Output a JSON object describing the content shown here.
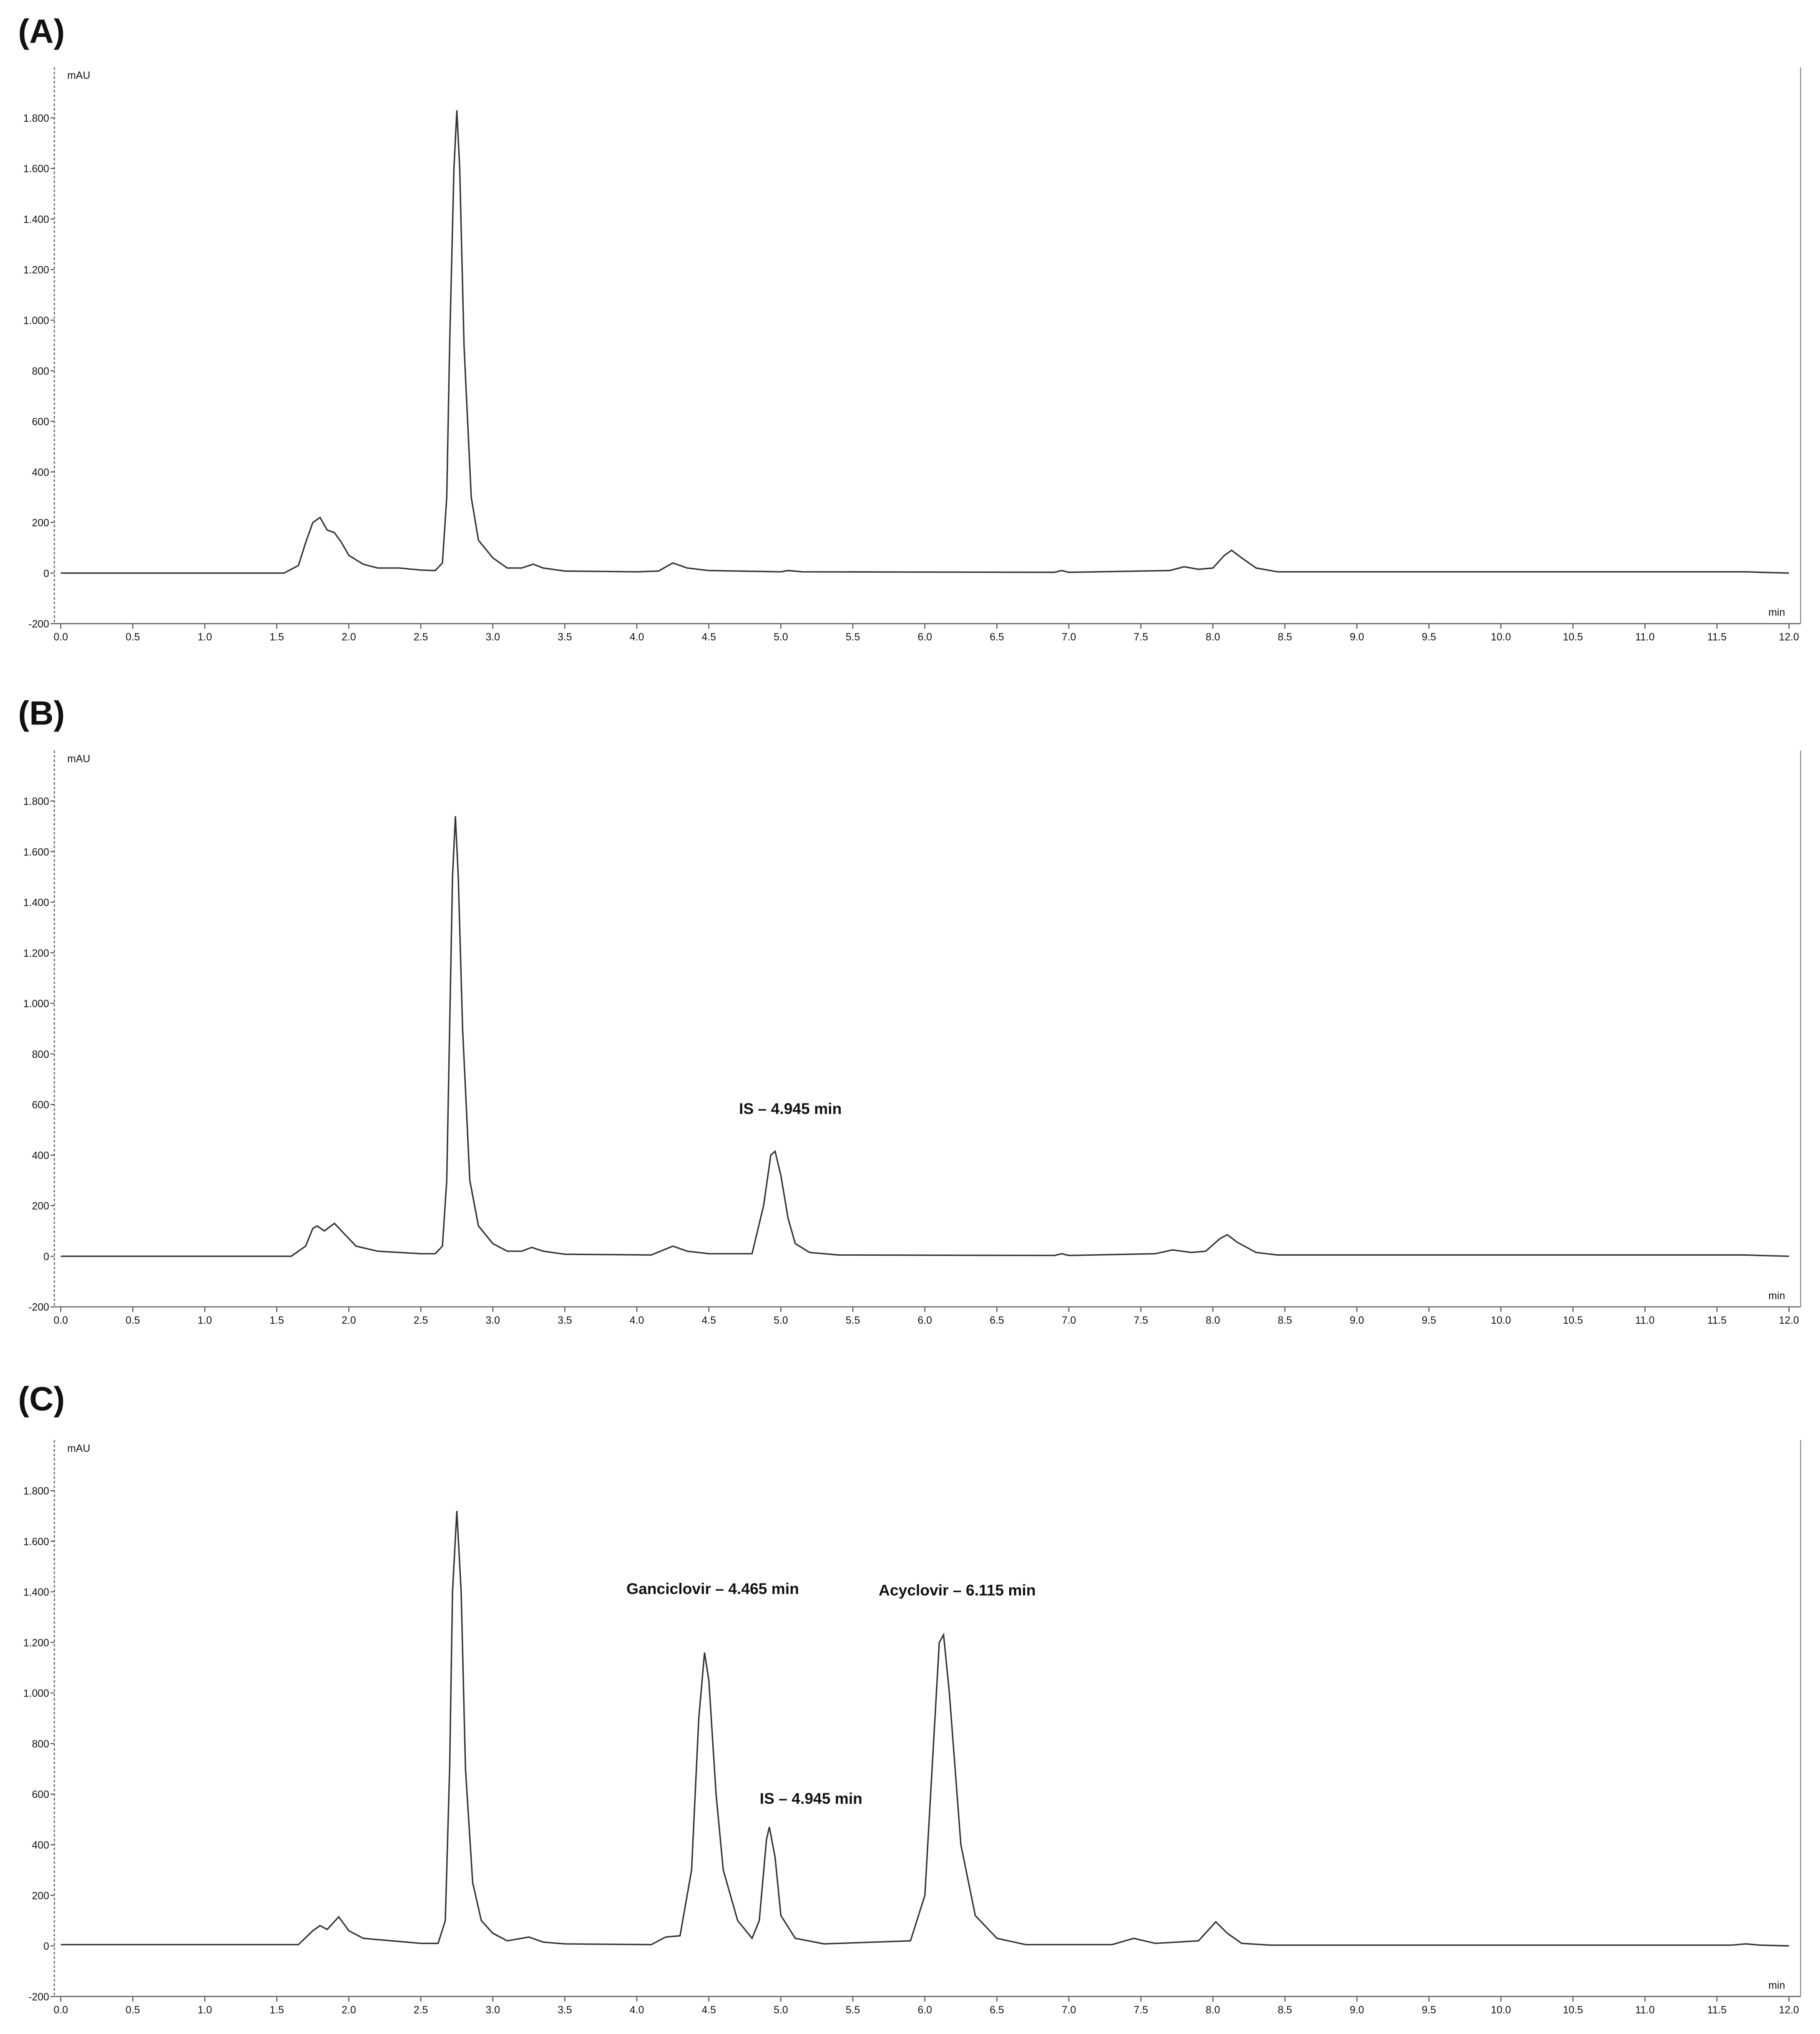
{
  "chart_data": [
    {
      "type": "line",
      "title": "(A)",
      "y_label": "mAU",
      "x_label": "min",
      "annotations": [],
      "xlim": [
        0,
        12
      ],
      "ylim": [
        -200,
        2000
      ],
      "xticks": [
        {
          "value": 0,
          "label": "0.0"
        },
        {
          "value": 0.5,
          "label": "0.5"
        },
        {
          "value": 1,
          "label": "1.0"
        },
        {
          "value": 1.5,
          "label": "1.5"
        },
        {
          "value": 2,
          "label": "2.0"
        },
        {
          "value": 2.5,
          "label": "2.5"
        },
        {
          "value": 3,
          "label": "3.0"
        },
        {
          "value": 3.5,
          "label": "3.5"
        },
        {
          "value": 4,
          "label": "4.0"
        },
        {
          "value": 4.5,
          "label": "4.5"
        },
        {
          "value": 5,
          "label": "5.0"
        },
        {
          "value": 5.5,
          "label": "5.5"
        },
        {
          "value": 6,
          "label": "6.0"
        },
        {
          "value": 6.5,
          "label": "6.5"
        },
        {
          "value": 7,
          "label": "7.0"
        },
        {
          "value": 7.5,
          "label": "7.5"
        },
        {
          "value": 8,
          "label": "8.0"
        },
        {
          "value": 8.5,
          "label": "8.5"
        },
        {
          "value": 9,
          "label": "9.0"
        },
        {
          "value": 9.5,
          "label": "9.5"
        },
        {
          "value": 10,
          "label": "10.0"
        },
        {
          "value": 10.5,
          "label": "10.5"
        },
        {
          "value": 11,
          "label": "11.0"
        },
        {
          "value": 11.5,
          "label": "11.5"
        },
        {
          "value": 12,
          "label": "12.0"
        }
      ],
      "yticks": [
        -200,
        0,
        200,
        400,
        600,
        800,
        {
          "value": 1000,
          "label": "1.000"
        },
        {
          "value": 1200,
          "label": "1.200"
        },
        {
          "value": 1400,
          "label": "1.400"
        },
        {
          "value": 1600,
          "label": "1.600"
        },
        {
          "value": 1800,
          "label": "1.800"
        }
      ],
      "color": "#333333",
      "x": [
        0,
        1.55,
        1.65,
        1.7,
        1.75,
        1.8,
        1.85,
        1.9,
        1.95,
        2.0,
        2.1,
        2.2,
        2.35,
        2.5,
        2.6,
        2.65,
        2.68,
        2.7,
        2.73,
        2.75,
        2.77,
        2.8,
        2.85,
        2.9,
        3.0,
        3.1,
        3.2,
        3.28,
        3.35,
        3.5,
        4.0,
        4.15,
        4.25,
        4.35,
        4.5,
        5.0,
        5.05,
        5.15,
        6.9,
        6.95,
        7.0,
        7.7,
        7.8,
        7.9,
        8.0,
        8.08,
        8.13,
        8.2,
        8.3,
        8.45,
        11.7,
        11.8,
        12.0
      ],
      "values": [
        0,
        0,
        30,
        120,
        200,
        220,
        170,
        160,
        120,
        70,
        35,
        20,
        20,
        12,
        10,
        40,
        300,
        900,
        1600,
        1830,
        1600,
        900,
        300,
        130,
        60,
        20,
        20,
        35,
        20,
        8,
        5,
        8,
        40,
        20,
        10,
        5,
        10,
        5,
        3,
        10,
        3,
        10,
        25,
        15,
        20,
        70,
        90,
        60,
        20,
        5,
        5,
        3,
        0
      ]
    },
    {
      "type": "line",
      "title": "(B)",
      "y_label": "mAU",
      "x_label": "min",
      "annotations": [
        "IS – 4.945 min"
      ],
      "xlim": [
        0,
        12
      ],
      "ylim": [
        -200,
        2000
      ],
      "xticks": [
        {
          "value": 0,
          "label": "0.0"
        },
        {
          "value": 0.5,
          "label": "0.5"
        },
        {
          "value": 1,
          "label": "1.0"
        },
        {
          "value": 1.5,
          "label": "1.5"
        },
        {
          "value": 2,
          "label": "2.0"
        },
        {
          "value": 2.5,
          "label": "2.5"
        },
        {
          "value": 3,
          "label": "3.0"
        },
        {
          "value": 3.5,
          "label": "3.5"
        },
        {
          "value": 4,
          "label": "4.0"
        },
        {
          "value": 4.5,
          "label": "4.5"
        },
        {
          "value": 5,
          "label": "5.0"
        },
        {
          "value": 5.5,
          "label": "5.5"
        },
        {
          "value": 6,
          "label": "6.0"
        },
        {
          "value": 6.5,
          "label": "6.5"
        },
        {
          "value": 7,
          "label": "7.0"
        },
        {
          "value": 7.5,
          "label": "7.5"
        },
        {
          "value": 8,
          "label": "8.0"
        },
        {
          "value": 8.5,
          "label": "8.5"
        },
        {
          "value": 9,
          "label": "9.0"
        },
        {
          "value": 9.5,
          "label": "9.5"
        },
        {
          "value": 10,
          "label": "10.0"
        },
        {
          "value": 10.5,
          "label": "10.5"
        },
        {
          "value": 11,
          "label": "11.0"
        },
        {
          "value": 11.5,
          "label": "11.5"
        },
        {
          "value": 12,
          "label": "12.0"
        }
      ],
      "yticks": [
        -200,
        0,
        200,
        400,
        600,
        800,
        {
          "value": 1000,
          "label": "1.000"
        },
        {
          "value": 1200,
          "label": "1.200"
        },
        {
          "value": 1400,
          "label": "1.400"
        },
        {
          "value": 1600,
          "label": "1.600"
        },
        {
          "value": 1800,
          "label": "1.800"
        }
      ],
      "color": "#333333",
      "x": [
        0,
        1.6,
        1.7,
        1.75,
        1.78,
        1.83,
        1.9,
        1.95,
        2.05,
        2.2,
        2.35,
        2.5,
        2.6,
        2.65,
        2.68,
        2.7,
        2.72,
        2.74,
        2.76,
        2.79,
        2.84,
        2.9,
        3.0,
        3.1,
        3.2,
        3.27,
        3.35,
        3.5,
        4.1,
        4.25,
        4.35,
        4.5,
        4.8,
        4.88,
        4.93,
        4.96,
        5.0,
        5.05,
        5.1,
        5.2,
        5.4,
        6.9,
        6.95,
        7.0,
        7.6,
        7.72,
        7.85,
        7.95,
        8.05,
        8.1,
        8.17,
        8.3,
        8.45,
        11.7,
        11.8,
        12.0
      ],
      "values": [
        0,
        0,
        40,
        110,
        120,
        100,
        130,
        100,
        40,
        20,
        15,
        10,
        10,
        40,
        300,
        900,
        1500,
        1740,
        1500,
        900,
        300,
        120,
        50,
        20,
        20,
        35,
        20,
        8,
        5,
        40,
        20,
        10,
        10,
        200,
        400,
        415,
        320,
        150,
        50,
        15,
        5,
        3,
        10,
        3,
        10,
        25,
        15,
        20,
        70,
        85,
        55,
        15,
        5,
        5,
        3,
        0
      ]
    },
    {
      "type": "line",
      "title": "(C)",
      "y_label": "mAU",
      "x_label": "min",
      "annotations": [
        "Ganciclovir – 4.465 min",
        "Acyclovir – 6.115 min",
        "IS – 4.945 min"
      ],
      "xlim": [
        0,
        12
      ],
      "ylim": [
        -200,
        2000
      ],
      "xticks": [
        {
          "value": 0,
          "label": "0.0"
        },
        {
          "value": 0.5,
          "label": "0.5"
        },
        {
          "value": 1,
          "label": "1.0"
        },
        {
          "value": 1.5,
          "label": "1.5"
        },
        {
          "value": 2,
          "label": "2.0"
        },
        {
          "value": 2.5,
          "label": "2.5"
        },
        {
          "value": 3,
          "label": "3.0"
        },
        {
          "value": 3.5,
          "label": "3.5"
        },
        {
          "value": 4,
          "label": "4.0"
        },
        {
          "value": 4.5,
          "label": "4.5"
        },
        {
          "value": 5,
          "label": "5.0"
        },
        {
          "value": 5.5,
          "label": "5.5"
        },
        {
          "value": 6,
          "label": "6.0"
        },
        {
          "value": 6.5,
          "label": "6.5"
        },
        {
          "value": 7,
          "label": "7.0"
        },
        {
          "value": 7.5,
          "label": "7.5"
        },
        {
          "value": 8,
          "label": "8.0"
        },
        {
          "value": 8.5,
          "label": "8.5"
        },
        {
          "value": 9,
          "label": "9.0"
        },
        {
          "value": 9.5,
          "label": "9.5"
        },
        {
          "value": 10,
          "label": "10.0"
        },
        {
          "value": 10.5,
          "label": "10.5"
        },
        {
          "value": 11,
          "label": "11.0"
        },
        {
          "value": 11.5,
          "label": "11.5"
        },
        {
          "value": 12,
          "label": "12.0"
        }
      ],
      "yticks": [
        -200,
        0,
        200,
        400,
        600,
        800,
        {
          "value": 1000,
          "label": "1.000"
        },
        {
          "value": 1200,
          "label": "1.200"
        },
        {
          "value": 1400,
          "label": "1.400"
        },
        {
          "value": 1600,
          "label": "1.600"
        },
        {
          "value": 1800,
          "label": "1.800"
        }
      ],
      "color": "#333333",
      "x": [
        0,
        1.65,
        1.75,
        1.8,
        1.85,
        1.93,
        2.0,
        2.1,
        2.3,
        2.5,
        2.62,
        2.67,
        2.7,
        2.72,
        2.75,
        2.78,
        2.81,
        2.86,
        2.92,
        3.0,
        3.1,
        3.25,
        3.35,
        3.5,
        4.1,
        4.2,
        4.3,
        4.38,
        4.43,
        4.47,
        4.5,
        4.55,
        4.6,
        4.7,
        4.8,
        4.85,
        4.9,
        4.92,
        4.96,
        5.0,
        5.1,
        5.3,
        5.9,
        6.0,
        6.06,
        6.1,
        6.13,
        6.17,
        6.25,
        6.35,
        6.5,
        6.7,
        7.3,
        7.45,
        7.6,
        7.9,
        8.02,
        8.1,
        8.2,
        8.4,
        11.6,
        11.7,
        11.8,
        12.0
      ],
      "values": [
        5,
        5,
        60,
        80,
        65,
        115,
        60,
        30,
        20,
        10,
        10,
        100,
        700,
        1400,
        1720,
        1400,
        700,
        250,
        100,
        50,
        20,
        35,
        15,
        8,
        5,
        35,
        40,
        300,
        900,
        1160,
        1050,
        600,
        300,
        100,
        30,
        100,
        420,
        470,
        350,
        120,
        30,
        8,
        20,
        200,
        800,
        1200,
        1230,
        1000,
        400,
        120,
        30,
        5,
        5,
        30,
        10,
        20,
        95,
        50,
        10,
        3,
        3,
        8,
        3,
        0
      ]
    }
  ]
}
